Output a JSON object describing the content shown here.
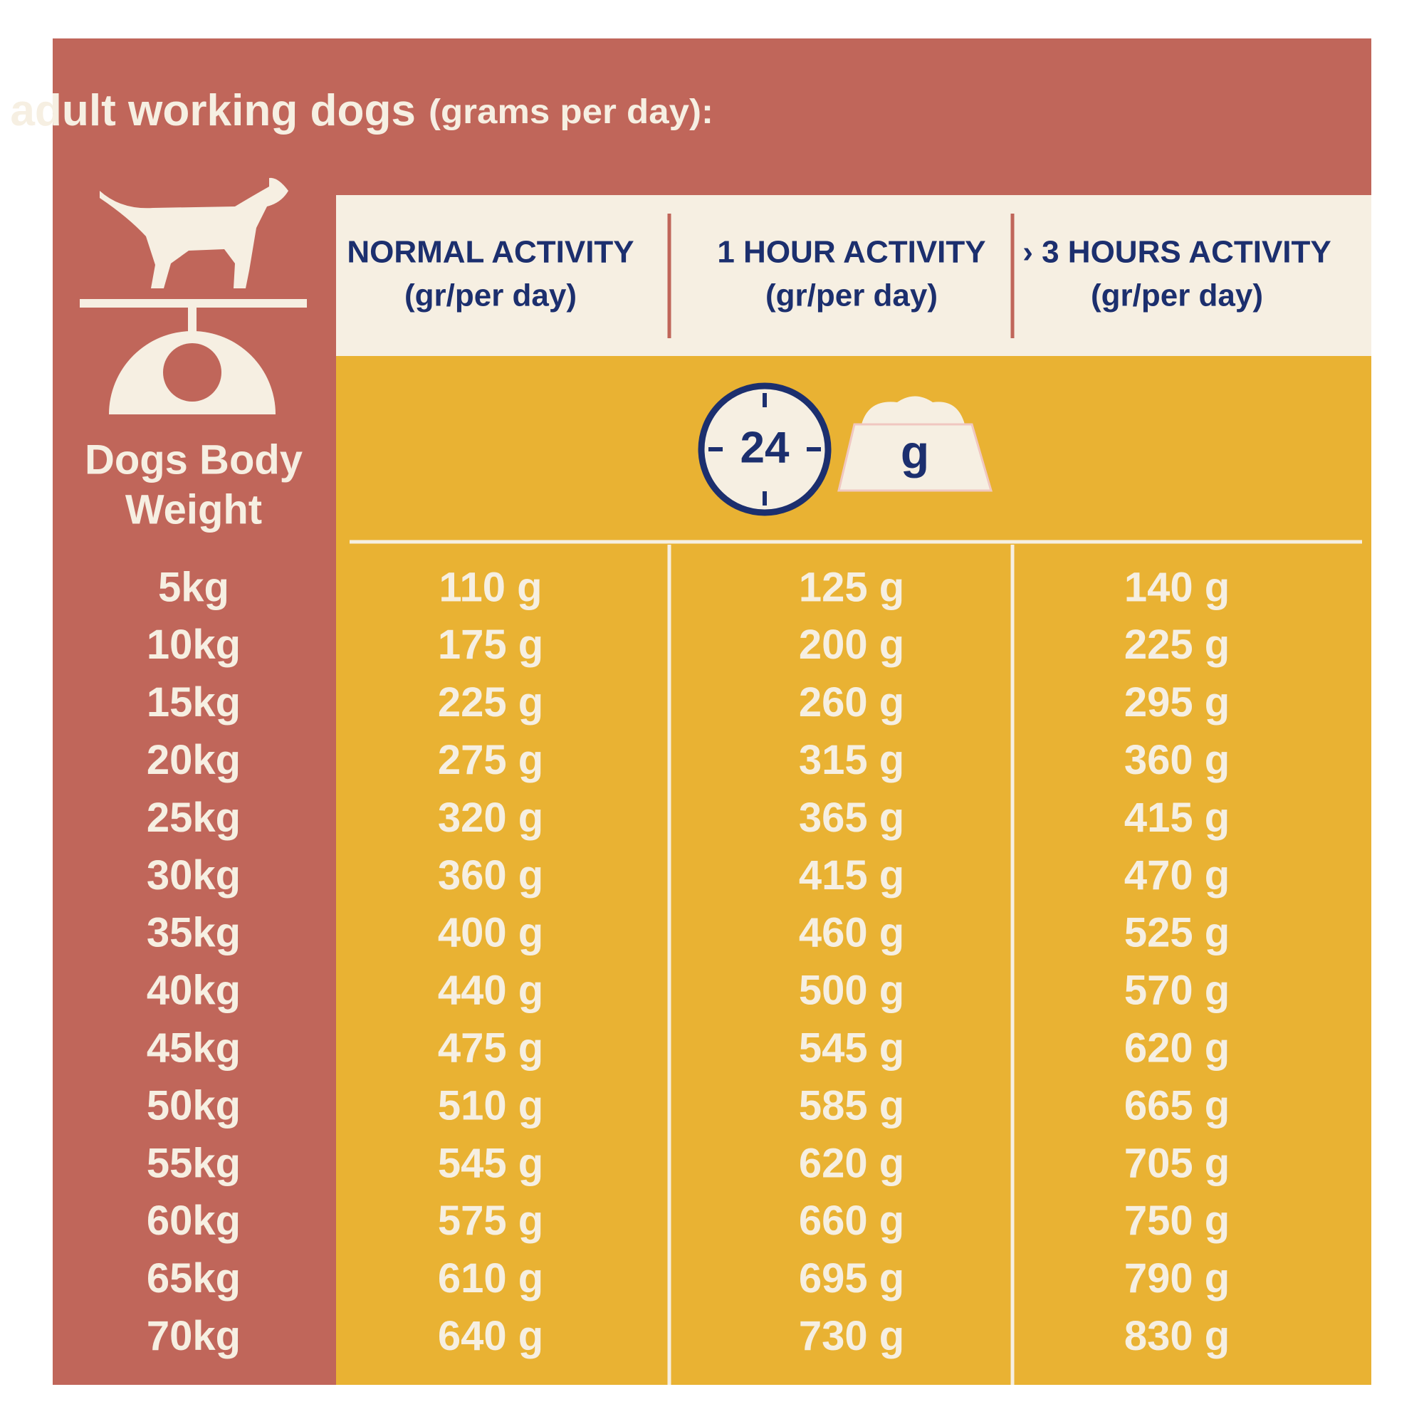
{
  "header": {
    "title": "Daily feeding amounts for adult working dogs",
    "title_unit": "(grams per day):"
  },
  "table": {
    "row_header": [
      "Dogs Body",
      "Weight"
    ],
    "columns": [
      {
        "name": "NORMAL ACTIVITY",
        "unit": "(gr/per day)"
      },
      {
        "name": "1 HOUR ACTIVITY",
        "unit": "(gr/per day)"
      },
      {
        "name": "› 3 HOURS ACTIVITY",
        "unit": "(gr/per day)"
      }
    ],
    "icons": {
      "clock": "24",
      "bowl": "g"
    },
    "rows": [
      [
        "5kg",
        "110 g",
        "125 g",
        "140 g"
      ],
      [
        "10kg",
        "175 g",
        "200 g",
        "225 g"
      ],
      [
        "15kg",
        "225 g",
        "260 g",
        "295 g"
      ],
      [
        "20kg",
        "275 g",
        "315 g",
        "360 g"
      ],
      [
        "25kg",
        "320 g",
        "365 g",
        "415 g"
      ],
      [
        "30kg",
        "360 g",
        "415 g",
        "470 g"
      ],
      [
        "35kg",
        "400 g",
        "460 g",
        "525 g"
      ],
      [
        "40kg",
        "440 g",
        "500 g",
        "570 g"
      ],
      [
        "45kg",
        "475 g",
        "545 g",
        "620 g"
      ],
      [
        "50kg",
        "510 g",
        "585 g",
        "665 g"
      ],
      [
        "55kg",
        "545 g",
        "620 g",
        "705 g"
      ],
      [
        "60kg",
        "575 g",
        "660 g",
        "750 g"
      ],
      [
        "65kg",
        "610 g",
        "695 g",
        "790 g"
      ],
      [
        "70kg",
        "640 g",
        "730 g",
        "830 g"
      ]
    ]
  }
}
